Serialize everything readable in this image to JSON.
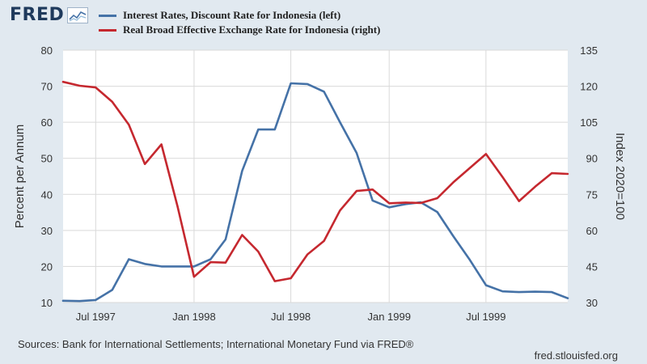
{
  "header": {
    "logo_text": "FRED",
    "logo_icon": "chart-trend-icon"
  },
  "chart_data": {
    "type": "line",
    "xlabel": "",
    "ylabel_left": "Percent per Annum",
    "ylabel_right": "Index 2020=100",
    "ylim_left": [
      10,
      80
    ],
    "ylim_right": [
      30,
      135
    ],
    "yticks_left": [
      10,
      20,
      30,
      40,
      50,
      60,
      70,
      80
    ],
    "yticks_right": [
      30,
      45,
      60,
      75,
      90,
      105,
      120,
      135
    ],
    "xlim": [
      "1997-05-01",
      "1999-12-01"
    ],
    "xticks": [
      {
        "date": "1997-07-01",
        "label": "Jul 1997"
      },
      {
        "date": "1998-01-01",
        "label": "Jan 1998"
      },
      {
        "date": "1998-07-01",
        "label": "Jul 1998"
      },
      {
        "date": "1999-01-01",
        "label": "Jan 1999"
      },
      {
        "date": "1999-07-01",
        "label": "Jul 1999"
      }
    ],
    "grid": true,
    "legend_position": "top-left",
    "series": [
      {
        "name": "Interest Rates, Discount Rate for Indonesia (left)",
        "axis": "left",
        "color": "#4572a7",
        "points": [
          [
            "1997-05-01",
            10.5
          ],
          [
            "1997-06-01",
            10.4
          ],
          [
            "1997-07-01",
            10.7
          ],
          [
            "1997-08-01",
            13.5
          ],
          [
            "1997-09-01",
            22.0
          ],
          [
            "1997-10-01",
            20.7
          ],
          [
            "1997-11-01",
            20.0
          ],
          [
            "1997-12-01",
            20.0
          ],
          [
            "1998-01-01",
            20.0
          ],
          [
            "1998-02-01",
            22.0
          ],
          [
            "1998-03-01",
            27.5
          ],
          [
            "1998-04-01",
            46.5
          ],
          [
            "1998-05-01",
            58.0
          ],
          [
            "1998-06-01",
            58.0
          ],
          [
            "1998-07-01",
            70.8
          ],
          [
            "1998-08-01",
            70.6
          ],
          [
            "1998-09-01",
            68.5
          ],
          [
            "1998-10-01",
            60.0
          ],
          [
            "1998-11-01",
            51.5
          ],
          [
            "1998-12-01",
            38.3
          ],
          [
            "1999-01-01",
            36.4
          ],
          [
            "1999-02-01",
            37.3
          ],
          [
            "1999-03-01",
            37.8
          ],
          [
            "1999-04-01",
            35.1
          ],
          [
            "1999-05-01",
            28.4
          ],
          [
            "1999-06-01",
            21.8
          ],
          [
            "1999-07-01",
            14.8
          ],
          [
            "1999-08-01",
            13.1
          ],
          [
            "1999-09-01",
            12.9
          ],
          [
            "1999-10-01",
            13.0
          ],
          [
            "1999-11-01",
            12.9
          ],
          [
            "1999-12-01",
            11.2
          ]
        ]
      },
      {
        "name": "Real Broad Effective Exchange Rate for Indonesia (right)",
        "axis": "right",
        "color": "#c5282f",
        "points": [
          [
            "1997-05-01",
            121.8
          ],
          [
            "1997-06-01",
            120.2
          ],
          [
            "1997-07-01",
            119.5
          ],
          [
            "1997-08-01",
            113.5
          ],
          [
            "1997-09-01",
            104.0
          ],
          [
            "1997-10-01",
            87.6
          ],
          [
            "1997-11-01",
            95.8
          ],
          [
            "1997-12-01",
            70.0
          ],
          [
            "1998-01-01",
            40.7
          ],
          [
            "1998-02-01",
            46.8
          ],
          [
            "1998-03-01",
            46.6
          ],
          [
            "1998-04-01",
            58.1
          ],
          [
            "1998-05-01",
            51.2
          ],
          [
            "1998-06-01",
            38.9
          ],
          [
            "1998-07-01",
            40.1
          ],
          [
            "1998-08-01",
            50.0
          ],
          [
            "1998-09-01",
            55.6
          ],
          [
            "1998-10-01",
            68.3
          ],
          [
            "1998-11-01",
            76.4
          ],
          [
            "1998-12-01",
            77.0
          ],
          [
            "1999-01-01",
            71.3
          ],
          [
            "1999-02-01",
            71.6
          ],
          [
            "1999-03-01",
            71.4
          ],
          [
            "1999-04-01",
            73.4
          ],
          [
            "1999-05-01",
            80.0
          ],
          [
            "1999-06-01",
            86.0
          ],
          [
            "1999-07-01",
            91.8
          ],
          [
            "1999-08-01",
            82.2
          ],
          [
            "1999-09-01",
            72.2
          ],
          [
            "1999-10-01",
            78.2
          ],
          [
            "1999-11-01",
            83.8
          ],
          [
            "1999-12-01",
            83.5
          ]
        ]
      }
    ]
  },
  "footer": {
    "sources": "Sources: Bank for International Settlements; International Monetary Fund via FRED®",
    "site": "fred.stlouisfed.org"
  }
}
